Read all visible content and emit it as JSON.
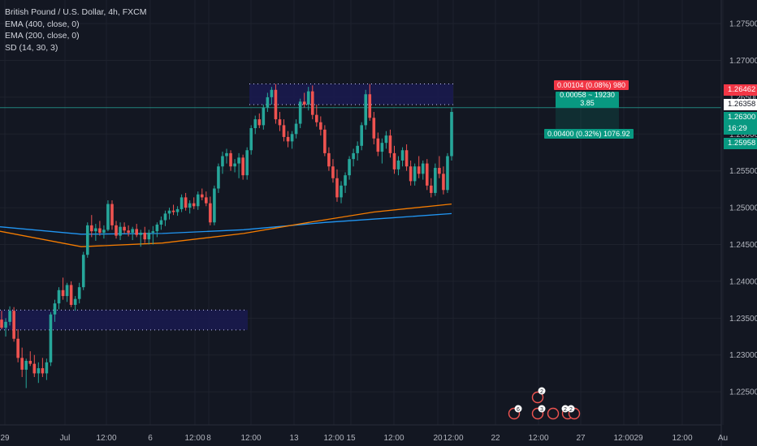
{
  "chart_data": {
    "type": "candlestick",
    "title": "British Pound / U.S. Dollar, 4h, FXCM",
    "indicators": [
      "EMA (400, close, 0)",
      "EMA (200, close, 0)",
      "SD (14, 30, 3)"
    ],
    "y_axis_ticks": [
      "1.27500",
      "1.27000",
      "1.26500",
      "1.26000",
      "1.25500",
      "1.25000",
      "1.24500",
      "1.24000",
      "1.23500",
      "1.23000",
      "1.22500"
    ],
    "y_axis_tick_values": [
      1.275,
      1.27,
      1.265,
      1.26,
      1.255,
      1.25,
      1.245,
      1.24,
      1.235,
      1.23,
      1.225
    ],
    "x_axis_labels": [
      "29",
      "Jul",
      "12:00",
      "6",
      "12:00",
      "8",
      "12:00",
      "13",
      "12:00",
      "15",
      "12:00",
      "20",
      "12:00",
      "22",
      "12:00",
      "27",
      "12:00",
      "29",
      "12:00",
      "Au"
    ],
    "ylim": [
      1.2205,
      1.2782
    ],
    "price_tags": {
      "stop": "1.26462",
      "current": "1.26358",
      "green1": "1.26300",
      "countdown": "16:29",
      "target": "1.25958"
    },
    "position": {
      "risk_label": "0.00104 (0.08%) 980",
      "mid_label_1": "0.00058 ~ 19230",
      "mid_label_2": "3.85",
      "reward_label": "0.00400 (0.32%) 1076.92"
    },
    "event_badges": [
      "2",
      "6",
      "3",
      "2",
      "2"
    ],
    "colors": {
      "background": "#131722",
      "up": "#26a69a",
      "down": "#ef5350",
      "ema400": "#2196f3",
      "ema200": "#f57c00",
      "zone": "#1a1a4e",
      "axis_text": "#b2b5be"
    }
  }
}
